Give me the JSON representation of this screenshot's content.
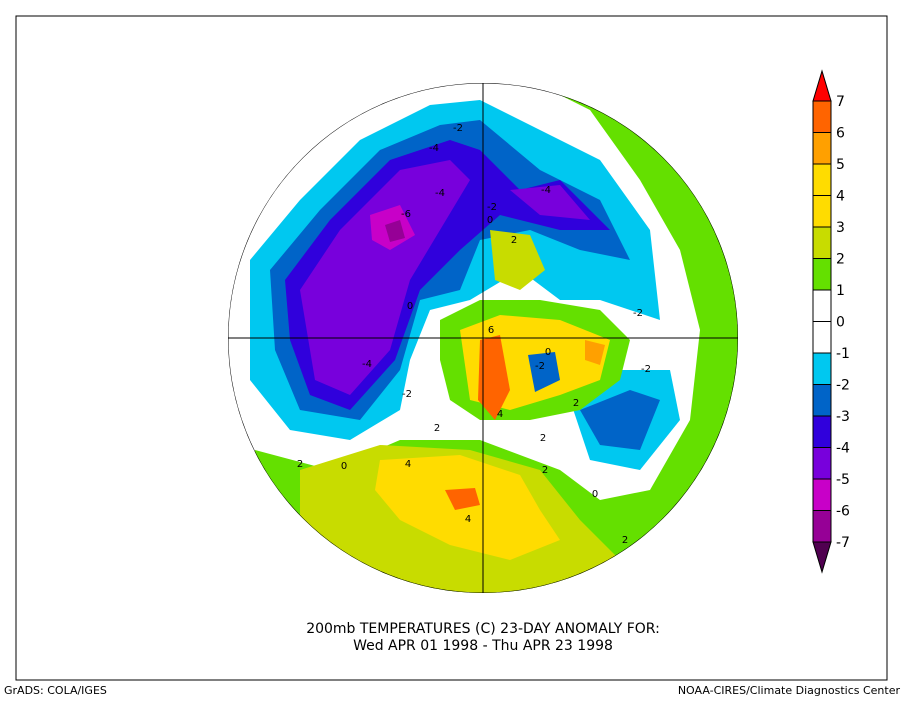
{
  "title": {
    "line1": "200mb TEMPERATURES (C)   23-DAY ANOMALY FOR:",
    "line2": "Wed APR 01 1998 - Thu APR 23 1998"
  },
  "footer": {
    "left": "GrADS: COLA/IGES",
    "right": "NOAA-CIRES/Climate Diagnostics Center"
  },
  "chart_data": {
    "type": "heatmap",
    "projection": "north polar stereographic",
    "variable": "200mb temperature anomaly",
    "units": "C",
    "colorbar": {
      "labels": [
        "7",
        "6",
        "5",
        "4",
        "3",
        "2",
        "1",
        "0",
        "-1",
        "-2",
        "-3",
        "-4",
        "-5",
        "-6",
        "-7"
      ],
      "bins": [
        {
          "range": ">7",
          "color": "#ff0000"
        },
        {
          "range": "6 to 7",
          "color": "#ff6400"
        },
        {
          "range": "5 to 6",
          "color": "#ffa000"
        },
        {
          "range": "4 to 5",
          "color": "#ffdc00"
        },
        {
          "range": "3 to 4",
          "color": "#ffdc00"
        },
        {
          "range": "2 to 3",
          "color": "#c8dc00"
        },
        {
          "range": "1 to 2",
          "color": "#64e000"
        },
        {
          "range": "0 to 1",
          "color": "#ffffff"
        },
        {
          "range": "-1 to 0",
          "color": "#ffffff"
        },
        {
          "range": "-2 to -1",
          "color": "#00c8f0"
        },
        {
          "range": "-3 to -2",
          "color": "#0064c8"
        },
        {
          "range": "-4 to -3",
          "color": "#3000dc"
        },
        {
          "range": "-5 to -4",
          "color": "#7800dc"
        },
        {
          "range": "-6 to -5",
          "color": "#c800c8"
        },
        {
          "range": "-7 to -6",
          "color": "#960096"
        },
        {
          "range": "<-7",
          "color": "#500050"
        }
      ]
    },
    "contour_labels": [
      "-2",
      "-4",
      "-4",
      "-4",
      "-6",
      "-2",
      "0",
      "2",
      "-2",
      "0",
      "6",
      "0",
      "-2",
      "-4",
      "-2",
      "-2",
      "4",
      "2",
      "2",
      "2",
      "0",
      "2",
      "4",
      "4",
      "2",
      "0",
      "2"
    ]
  }
}
